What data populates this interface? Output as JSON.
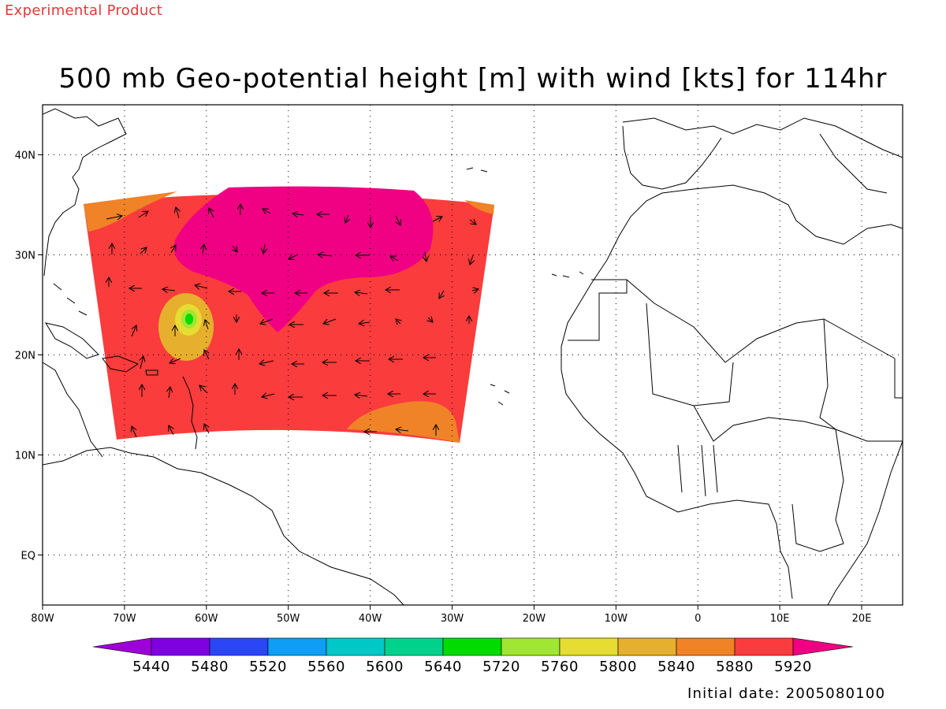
{
  "header": {
    "product_label": "Experimental Product",
    "title": "500 mb Geo-potential height [m] with wind [kts] for 114hr"
  },
  "axes": {
    "lat_labels": [
      "40N",
      "30N",
      "20N",
      "10N",
      "EQ"
    ],
    "lat_values": [
      40,
      30,
      20,
      10,
      0
    ],
    "lon_labels": [
      "80W",
      "70W",
      "60W",
      "50W",
      "40W",
      "30W",
      "20W",
      "10W",
      "0",
      "10E",
      "20E"
    ],
    "lon_values": [
      -80,
      -70,
      -60,
      -50,
      -40,
      -30,
      -20,
      -10,
      0,
      10,
      20
    ],
    "lon_range": [
      -80,
      25
    ],
    "lat_range": [
      -5,
      45
    ]
  },
  "colorbar": {
    "labels": [
      "5440",
      "5480",
      "5520",
      "5560",
      "5600",
      "5640",
      "5720",
      "5760",
      "5800",
      "5840",
      "5880",
      "5920"
    ],
    "colors": [
      "#9e00d8",
      "#7f00e0",
      "#2a46f5",
      "#0e9ef5",
      "#00c8c8",
      "#00d28c",
      "#00dc00",
      "#a0e632",
      "#e6dc32",
      "#e6af2d",
      "#f08228",
      "#fa3c3c",
      "#f00082"
    ]
  },
  "footer": {
    "initial_date": "Initial date: 2005080100"
  }
}
